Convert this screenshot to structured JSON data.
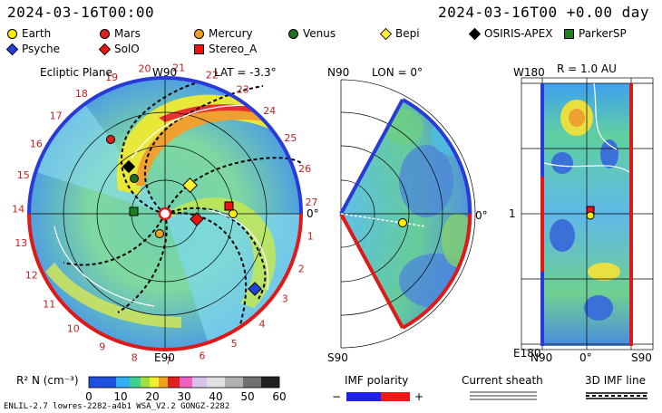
{
  "header": {
    "date_left": "2024-03-16T00:00",
    "date_right": "2024-03-16T00 +0.00 day"
  },
  "legend": [
    {
      "name": "Earth",
      "shape": "circle",
      "color": "#ffee00"
    },
    {
      "name": "Mars",
      "shape": "circle",
      "color": "#dd2020"
    },
    {
      "name": "Mercury",
      "shape": "circle",
      "color": "#f0a020"
    },
    {
      "name": "Venus",
      "shape": "circle",
      "color": "#207020"
    },
    {
      "name": "Bepi",
      "shape": "diamond",
      "color": "#ffee33"
    },
    {
      "name": "OSIRIS-APEX",
      "shape": "diamond",
      "color": "#000000"
    },
    {
      "name": "ParkerSP",
      "shape": "square",
      "color": "#208020"
    },
    {
      "name": "Psyche",
      "shape": "diamond",
      "color": "#2040e0"
    },
    {
      "name": "SolO",
      "shape": "diamond",
      "color": "#ee1111"
    },
    {
      "name": "Stereo_A",
      "shape": "square",
      "color": "#ee1111"
    }
  ],
  "ecliptic": {
    "title": "Ecliptic Plane",
    "top_label": "W90",
    "bottom_label": "E90",
    "lat": "LAT = -3.3°",
    "zero": "0°",
    "carrington": [
      "20",
      "21",
      "22",
      "23",
      "24",
      "25",
      "26",
      "27",
      "1",
      "2",
      "3",
      "4",
      "5",
      "6",
      "7",
      "8",
      "9",
      "10",
      "11",
      "12",
      "13",
      "14",
      "15",
      "16",
      "17",
      "18",
      "19"
    ]
  },
  "meridional": {
    "top_label": "N90",
    "bottom_label": "S90",
    "lon": "LON = 0°",
    "zero": "0°"
  },
  "shell": {
    "title": "R = 1.0 AU",
    "top_left": "W180",
    "bottom_left": "E180",
    "mid_left": "1",
    "bottom_n": "N90",
    "bottom_zero": "0°",
    "bottom_s": "S90"
  },
  "colorbar": {
    "label": "R² N (cm⁻³)",
    "ticks": [
      "0",
      "10",
      "20",
      "30",
      "40",
      "50",
      "60"
    ]
  },
  "imf": {
    "title": "IMF polarity",
    "minus": "−",
    "plus": "+"
  },
  "sheath": {
    "title": "Current sheath"
  },
  "imfline": {
    "title": "3D IMF line"
  },
  "footer": "ENLIL-2.7 lowres-2282-a4b1 WSA_V2.2 GONGZ-2282"
}
